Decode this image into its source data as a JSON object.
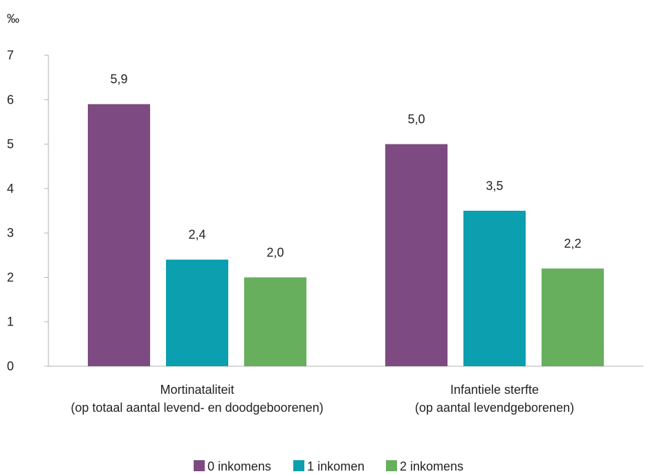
{
  "chart_data": {
    "type": "bar",
    "y_unit": "‰",
    "ylim": [
      0,
      7
    ],
    "y_ticks": [
      "0",
      "1",
      "2",
      "3",
      "4",
      "5",
      "6",
      "7"
    ],
    "grid": false,
    "legend_position": "bottom",
    "categories": [
      [
        "Mortinataliteit",
        "(op totaal aantal levend- en doodgeboorenen)"
      ],
      [
        "Infantiele sterfte",
        "(op aantal levendgeborenen)"
      ]
    ],
    "series": [
      {
        "name": "0 inkomens",
        "color": "#7d4b81",
        "values": [
          5.9,
          5.0
        ],
        "labels": [
          "5,9",
          "5,0"
        ]
      },
      {
        "name": "1 inkomen",
        "color": "#0b9faf",
        "values": [
          2.4,
          3.5
        ],
        "labels": [
          "2,4",
          "3,5"
        ]
      },
      {
        "name": "2 inkomens",
        "color": "#67ae5d",
        "values": [
          2.0,
          2.2
        ],
        "labels": [
          "2,0",
          "2,2"
        ]
      }
    ]
  }
}
